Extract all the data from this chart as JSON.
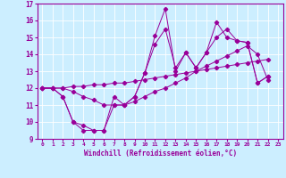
{
  "xlabel": "Windchill (Refroidissement éolien,°C)",
  "bg_color": "#cceeff",
  "line_color": "#990099",
  "xlim": [
    -0.5,
    23.5
  ],
  "ylim": [
    9,
    17
  ],
  "xticks": [
    0,
    1,
    2,
    3,
    4,
    5,
    6,
    7,
    8,
    9,
    10,
    11,
    12,
    13,
    14,
    15,
    16,
    17,
    18,
    19,
    20,
    21,
    22,
    23
  ],
  "yticks": [
    9,
    10,
    11,
    12,
    13,
    14,
    15,
    16,
    17
  ],
  "series": [
    [
      12.0,
      12.0,
      11.5,
      10.0,
      9.5,
      9.5,
      9.5,
      11.0,
      11.0,
      11.5,
      12.9,
      15.1,
      16.7,
      13.0,
      14.1,
      13.2,
      14.1,
      15.9,
      15.0,
      14.8,
      14.7,
      12.3,
      12.7
    ],
    [
      12.0,
      12.0,
      11.5,
      10.0,
      9.8,
      9.5,
      9.5,
      11.5,
      11.0,
      11.5,
      12.9,
      14.6,
      15.5,
      13.2,
      14.1,
      13.2,
      14.1,
      15.0,
      15.5,
      14.8,
      14.7,
      12.3,
      12.7
    ],
    [
      12.0,
      12.0,
      12.0,
      12.1,
      12.1,
      12.2,
      12.2,
      12.3,
      12.3,
      12.4,
      12.5,
      12.6,
      12.7,
      12.8,
      12.9,
      13.0,
      13.1,
      13.2,
      13.3,
      13.4,
      13.5,
      13.6,
      13.7
    ],
    [
      12.0,
      12.0,
      12.0,
      11.8,
      11.5,
      11.3,
      11.0,
      11.0,
      11.0,
      11.2,
      11.5,
      11.8,
      12.0,
      12.3,
      12.6,
      13.0,
      13.3,
      13.6,
      13.9,
      14.2,
      14.5,
      14.0,
      12.5
    ]
  ]
}
